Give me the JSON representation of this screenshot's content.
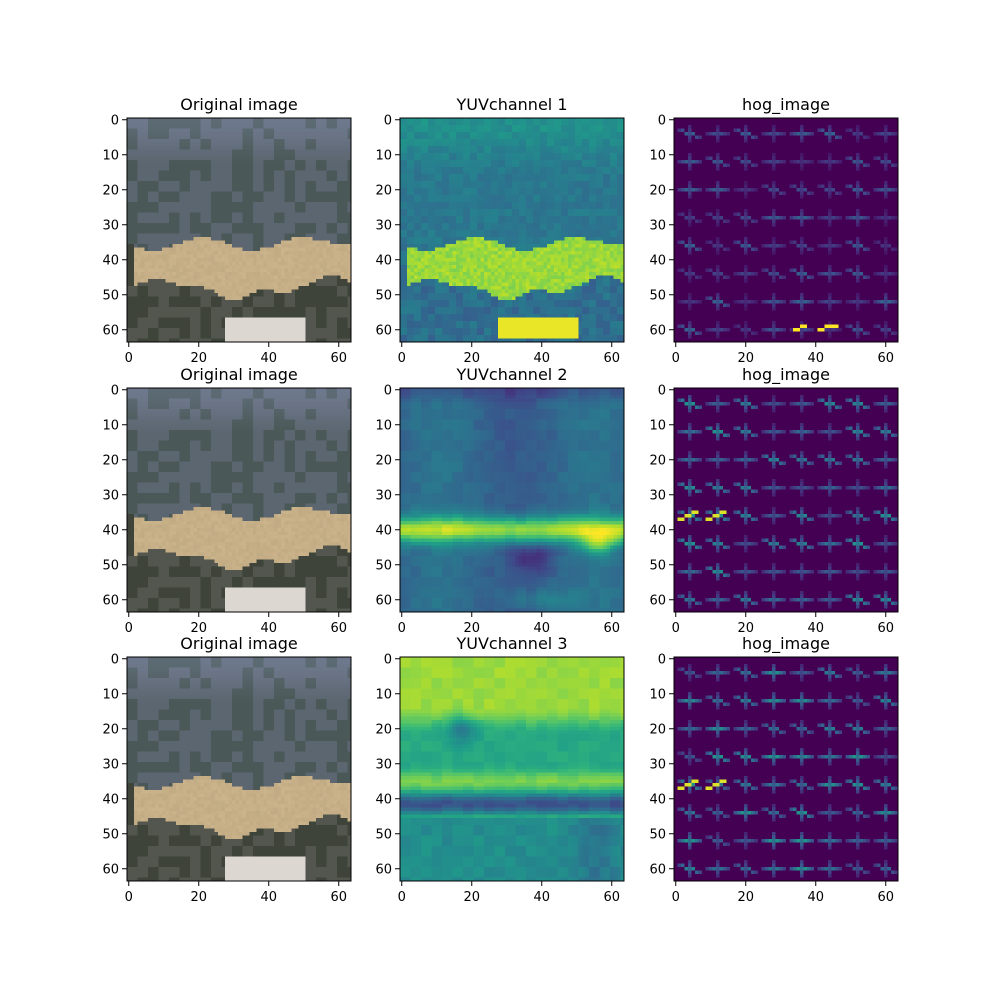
{
  "chart_data": [
    {
      "type": "image",
      "title": "Original image",
      "kind": "rgb",
      "row": 0,
      "col": 0,
      "xlim": [
        0,
        63
      ],
      "ylim": [
        63,
        0
      ],
      "xticks": [
        0,
        20,
        40,
        60
      ],
      "yticks": [
        0,
        10,
        20,
        30,
        40,
        50,
        60
      ]
    },
    {
      "type": "heatmap",
      "title": "YUVchannel 1",
      "kind": "y",
      "row": 0,
      "col": 1,
      "colormap": "viridis",
      "xlim": [
        0,
        63
      ],
      "ylim": [
        63,
        0
      ],
      "xticks": [
        0,
        20,
        40,
        60
      ],
      "yticks": [
        0,
        10,
        20,
        30,
        40,
        50,
        60
      ]
    },
    {
      "type": "heatmap",
      "title": "hog_image",
      "kind": "hog",
      "row": 0,
      "col": 2,
      "colormap": "viridis",
      "xlim": [
        0,
        63
      ],
      "ylim": [
        63,
        0
      ],
      "xticks": [
        0,
        20,
        40,
        60
      ],
      "yticks": [
        0,
        10,
        20,
        30,
        40,
        50,
        60
      ]
    },
    {
      "type": "image",
      "title": "Original image",
      "kind": "rgb",
      "row": 1,
      "col": 0,
      "xlim": [
        0,
        63
      ],
      "ylim": [
        63,
        0
      ],
      "xticks": [
        0,
        20,
        40,
        60
      ],
      "yticks": [
        0,
        10,
        20,
        30,
        40,
        50,
        60
      ]
    },
    {
      "type": "heatmap",
      "title": "YUVchannel 2",
      "kind": "u",
      "row": 1,
      "col": 1,
      "colormap": "viridis",
      "xlim": [
        0,
        63
      ],
      "ylim": [
        63,
        0
      ],
      "xticks": [
        0,
        20,
        40,
        60
      ],
      "yticks": [
        0,
        10,
        20,
        30,
        40,
        50,
        60
      ]
    },
    {
      "type": "heatmap",
      "title": "hog_image",
      "kind": "hog",
      "row": 1,
      "col": 2,
      "colormap": "viridis",
      "xlim": [
        0,
        63
      ],
      "ylim": [
        63,
        0
      ],
      "xticks": [
        0,
        20,
        40,
        60
      ],
      "yticks": [
        0,
        10,
        20,
        30,
        40,
        50,
        60
      ]
    },
    {
      "type": "image",
      "title": "Original image",
      "kind": "rgb",
      "row": 2,
      "col": 0,
      "xlim": [
        0,
        63
      ],
      "ylim": [
        63,
        0
      ],
      "xticks": [
        0,
        20,
        40,
        60
      ],
      "yticks": [
        0,
        10,
        20,
        30,
        40,
        50,
        60
      ]
    },
    {
      "type": "heatmap",
      "title": "YUVchannel 3",
      "kind": "v",
      "row": 2,
      "col": 1,
      "colormap": "viridis",
      "xlim": [
        0,
        63
      ],
      "ylim": [
        63,
        0
      ],
      "xticks": [
        0,
        20,
        40,
        60
      ],
      "yticks": [
        0,
        10,
        20,
        30,
        40,
        50,
        60
      ]
    },
    {
      "type": "heatmap",
      "title": "hog_image",
      "kind": "hog",
      "row": 2,
      "col": 2,
      "colormap": "viridis",
      "xlim": [
        0,
        63
      ],
      "ylim": [
        63,
        0
      ],
      "xticks": [
        0,
        20,
        40,
        60
      ],
      "yticks": [
        0,
        10,
        20,
        30,
        40,
        50,
        60
      ]
    }
  ]
}
